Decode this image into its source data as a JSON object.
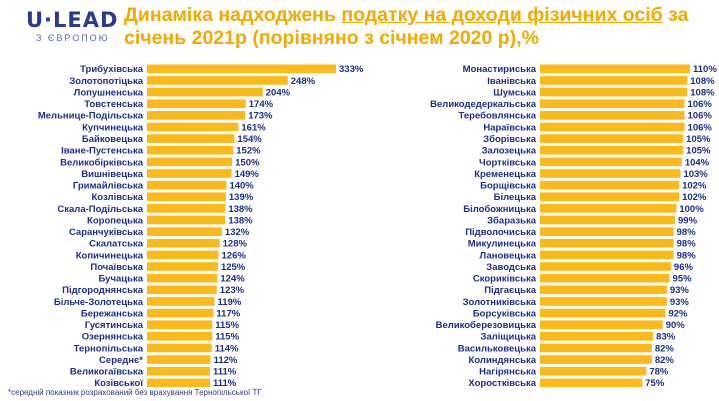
{
  "logo": {
    "main": "U·LEAD",
    "sub": "З ЄВРОПОЮ"
  },
  "title": {
    "part1": "Динаміка надходжень ",
    "link": "податку на доходи фізичних осіб",
    "part2": " за січень 2021р (порівняно з січнем 2020 р),%"
  },
  "footnote": "*середній показник розрахований без врахування Тернопільської ТГ",
  "colors": {
    "bar": "#fbb91a",
    "highlight": "#7089c9",
    "label": "#1c2d8e",
    "title": "#f2a900"
  },
  "chart_data": [
    {
      "type": "bar",
      "orientation": "horizontal",
      "title": "",
      "xlabel": "",
      "ylabel": "",
      "xlim": [
        0,
        333
      ],
      "highlight_index": 29,
      "categories": [
        "Трибухівська",
        "Золотопотіцька",
        "Лопушненська",
        "Товстенська",
        "Мельнице-Подільська",
        "Купчинецька",
        "Байковецька",
        "Іване-Пустенська",
        "Великобірківська",
        "Вишнівецька",
        "Гримайлівська",
        "Козлівська",
        "Скала-Подільська",
        "Коропецька",
        "Саранчуківська",
        "Скалатська",
        "Копичинецька",
        "Почаївська",
        "Бучацька",
        "Підгороднянська",
        "Більче-Золотецька",
        "Бережанська",
        "Гусятинська",
        "Озернянська",
        "Тернопільська",
        "Середнє*",
        "Великогаївська",
        "Козівської"
      ],
      "values": [
        333,
        248,
        204,
        174,
        173,
        161,
        154,
        152,
        150,
        149,
        140,
        139,
        138,
        138,
        132,
        128,
        126,
        125,
        124,
        123,
        119,
        117,
        115,
        115,
        114,
        112,
        111,
        111
      ],
      "labels": [
        "333%",
        "248%",
        "204%",
        "174%",
        "173%",
        "161%",
        "154%",
        "152%",
        "150%",
        "149%",
        "140%",
        "139%",
        "138%",
        "138%",
        "132%",
        "128%",
        "126%",
        "125%",
        "124%",
        "123%",
        "119%",
        "117%",
        "115%",
        "115%",
        "114%",
        "112%",
        "111%",
        "111%"
      ]
    },
    {
      "type": "bar",
      "orientation": "horizontal",
      "title": "",
      "xlabel": "",
      "ylabel": "",
      "xlim": [
        0,
        110
      ],
      "categories": [
        "Монастириська",
        "Іванівська",
        "Шумська",
        "Великодедеркальська",
        "Теребовлянська",
        "Нараївська",
        "Зборівська",
        "Залозецька",
        "Чортківська",
        "Кременецька",
        "Борщівська",
        "Білецька",
        "Білобожницька",
        "Збаразька",
        "Підволочиська",
        "Микулинецька",
        "Лановецька",
        "Заводська",
        "Скориківська",
        "Підгаєцька",
        "Золотниківська",
        "Борсуківська",
        "Великоберезовицька",
        "Заліщицька",
        "Васильковецька",
        "Колиндянська",
        "Нагірянська",
        "Хоростківська"
      ],
      "values": [
        110,
        108,
        108,
        106,
        106,
        106,
        105,
        105,
        104,
        103,
        102,
        102,
        100,
        99,
        98,
        98,
        98,
        96,
        95,
        93,
        93,
        92,
        90,
        83,
        82,
        82,
        78,
        75
      ],
      "labels": [
        "110%",
        "108%",
        "108%",
        "106%",
        "106%",
        "106%",
        "105%",
        "105%",
        "104%",
        "103%",
        "102%",
        "102%",
        "100%",
        "99%",
        "98%",
        "98%",
        "98%",
        "96%",
        "95%",
        "93%",
        "93%",
        "92%",
        "90%",
        "83%",
        "82%",
        "82%",
        "78%",
        "75%"
      ]
    }
  ]
}
